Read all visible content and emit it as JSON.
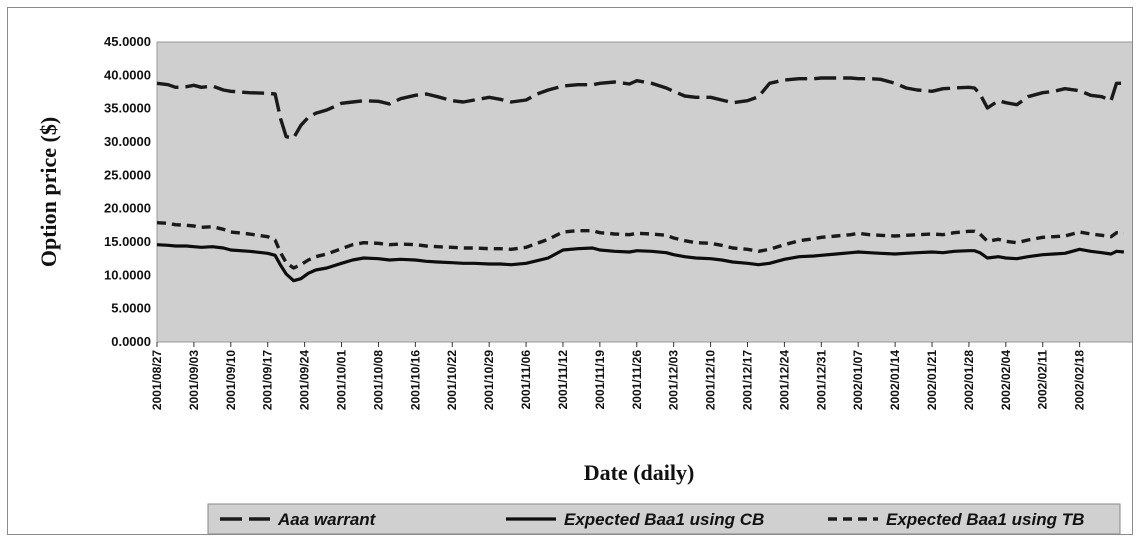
{
  "chart_data": {
    "type": "line",
    "title": "",
    "xlabel": "Date (daily)",
    "ylabel": "Option price ($)",
    "ylim": [
      0,
      45
    ],
    "y_ticks": [
      "45.0000",
      "40.0000",
      "35.0000",
      "30.0000",
      "25.0000",
      "20.0000",
      "15.0000",
      "10.0000",
      "5.0000",
      "0.0000"
    ],
    "x_ticks": [
      "2001/08/27",
      "2001/09/03",
      "2001/09/10",
      "2001/09/17",
      "2001/09/24",
      "2001/10/01",
      "2001/10/08",
      "2001/10/16",
      "2001/10/22",
      "2001/10/29",
      "2001/11/06",
      "2001/11/12",
      "2001/11/19",
      "2001/11/26",
      "2001/12/03",
      "2001/12/10",
      "2001/12/17",
      "2001/12/24",
      "2001/12/31",
      "2002/01/07",
      "2002/01/14",
      "2002/01/21",
      "2002/01/28",
      "2002/02/04",
      "2002/02/11",
      "2002/02/18"
    ],
    "x_range": [
      0,
      26.5
    ],
    "grid": false,
    "legend_position": "bottom",
    "series": [
      {
        "name": "Aaa warrant",
        "style": "long-dash",
        "color": "#1a1a1a",
        "x": [
          0,
          0.3,
          0.5,
          0.8,
          1,
          1.2,
          1.5,
          1.8,
          2,
          2.5,
          3,
          3.2,
          3.35,
          3.5,
          3.7,
          3.9,
          4.1,
          4.3,
          4.6,
          5,
          5.3,
          5.6,
          6,
          6.3,
          6.6,
          7,
          7.3,
          7.6,
          8,
          8.3,
          8.6,
          9,
          9.3,
          9.6,
          10,
          10.3,
          10.6,
          11,
          11.4,
          11.8,
          12,
          12.4,
          12.8,
          13,
          13.4,
          13.8,
          14,
          14.3,
          14.6,
          15,
          15.3,
          15.6,
          16,
          16.3,
          16.6,
          17,
          17.4,
          17.8,
          18,
          18.4,
          18.8,
          19,
          19.3,
          19.6,
          20,
          20.3,
          20.6,
          21,
          21.3,
          21.6,
          22,
          22.15,
          22.3,
          22.5,
          22.8,
          23,
          23.3,
          23.6,
          24,
          24.3,
          24.6,
          25,
          25.3,
          25.6,
          25.85,
          26,
          26.2
        ],
        "values": [
          38.8,
          38.6,
          38.2,
          38.3,
          38.5,
          38.2,
          38.4,
          37.8,
          37.6,
          37.4,
          37.3,
          37.2,
          33.5,
          30.8,
          30.6,
          32.5,
          33.7,
          34.3,
          34.8,
          35.8,
          36,
          36.2,
          36.1,
          35.7,
          36.5,
          37,
          37.2,
          36.8,
          36.2,
          36,
          36.3,
          36.7,
          36.4,
          36,
          36.3,
          37.2,
          37.8,
          38.4,
          38.6,
          38.6,
          38.8,
          39,
          38.7,
          39.2,
          38.8,
          38.1,
          37.6,
          36.9,
          36.7,
          36.7,
          36.3,
          35.9,
          36.2,
          36.8,
          38.8,
          39.3,
          39.5,
          39.5,
          39.6,
          39.6,
          39.6,
          39.5,
          39.5,
          39.4,
          38.8,
          38.1,
          37.8,
          37.6,
          38,
          38.1,
          38.2,
          38.1,
          37.2,
          35.1,
          36.2,
          35.9,
          35.6,
          36.8,
          37.4,
          37.6,
          38,
          37.7,
          37,
          36.8,
          36.2,
          38.8,
          38.8
        ]
      },
      {
        "name": "Expected Baa1 using CB",
        "style": "solid",
        "color": "#0d0d0d",
        "x": [
          0,
          0.3,
          0.5,
          0.8,
          1,
          1.2,
          1.5,
          1.8,
          2,
          2.5,
          3,
          3.2,
          3.35,
          3.5,
          3.7,
          3.9,
          4.1,
          4.3,
          4.6,
          5,
          5.3,
          5.6,
          6,
          6.3,
          6.6,
          7,
          7.3,
          7.6,
          8,
          8.3,
          8.6,
          9,
          9.3,
          9.6,
          10,
          10.3,
          10.6,
          11,
          11.4,
          11.8,
          12,
          12.4,
          12.8,
          13,
          13.4,
          13.8,
          14,
          14.3,
          14.6,
          15,
          15.3,
          15.6,
          16,
          16.3,
          16.6,
          17,
          17.4,
          17.8,
          18,
          18.4,
          18.8,
          19,
          19.3,
          19.6,
          20,
          20.3,
          20.6,
          21,
          21.3,
          21.6,
          22,
          22.15,
          22.3,
          22.5,
          22.8,
          23,
          23.3,
          23.6,
          24,
          24.3,
          24.6,
          25,
          25.3,
          25.6,
          25.85,
          26,
          26.2
        ],
        "values": [
          14.6,
          14.5,
          14.4,
          14.4,
          14.3,
          14.2,
          14.3,
          14.1,
          13.8,
          13.6,
          13.3,
          13,
          11.5,
          10.2,
          9.2,
          9.5,
          10.3,
          10.8,
          11.1,
          11.8,
          12.3,
          12.6,
          12.5,
          12.3,
          12.4,
          12.3,
          12.1,
          12,
          11.9,
          11.8,
          11.8,
          11.7,
          11.7,
          11.6,
          11.8,
          12.2,
          12.6,
          13.8,
          14,
          14.1,
          13.8,
          13.6,
          13.5,
          13.7,
          13.6,
          13.4,
          13.1,
          12.8,
          12.6,
          12.5,
          12.3,
          12,
          11.8,
          11.6,
          11.8,
          12.4,
          12.8,
          12.9,
          13,
          13.2,
          13.4,
          13.5,
          13.4,
          13.3,
          13.2,
          13.3,
          13.4,
          13.5,
          13.4,
          13.6,
          13.7,
          13.7,
          13.4,
          12.6,
          12.8,
          12.6,
          12.5,
          12.8,
          13.1,
          13.2,
          13.3,
          13.9,
          13.6,
          13.4,
          13.2,
          13.6,
          13.5
        ]
      },
      {
        "name": "Expected Baa1 using TB",
        "style": "short-dash",
        "color": "#1a1a1a",
        "x": [
          0,
          0.3,
          0.5,
          0.8,
          1,
          1.2,
          1.5,
          1.8,
          2,
          2.5,
          3,
          3.2,
          3.35,
          3.5,
          3.7,
          3.9,
          4.1,
          4.3,
          4.6,
          5,
          5.3,
          5.6,
          6,
          6.3,
          6.6,
          7,
          7.3,
          7.6,
          8,
          8.3,
          8.6,
          9,
          9.3,
          9.6,
          10,
          10.3,
          10.6,
          11,
          11.4,
          11.8,
          12,
          12.4,
          12.8,
          13,
          13.4,
          13.8,
          14,
          14.3,
          14.6,
          15,
          15.3,
          15.6,
          16,
          16.3,
          16.6,
          17,
          17.4,
          17.8,
          18,
          18.4,
          18.8,
          19,
          19.3,
          19.6,
          20,
          20.3,
          20.6,
          21,
          21.3,
          21.6,
          22,
          22.15,
          22.3,
          22.5,
          22.8,
          23,
          23.3,
          23.6,
          24,
          24.3,
          24.6,
          25,
          25.3,
          25.6,
          25.85,
          26,
          26.2
        ],
        "values": [
          17.9,
          17.8,
          17.6,
          17.5,
          17.4,
          17.2,
          17.3,
          16.9,
          16.5,
          16.2,
          15.8,
          15.3,
          13.4,
          11.9,
          11.1,
          11.6,
          12.3,
          12.8,
          13.2,
          14,
          14.6,
          14.9,
          14.8,
          14.6,
          14.7,
          14.6,
          14.4,
          14.3,
          14.2,
          14.1,
          14.1,
          14,
          14,
          13.9,
          14.2,
          14.8,
          15.4,
          16.5,
          16.7,
          16.7,
          16.4,
          16.2,
          16.1,
          16.3,
          16.2,
          16,
          15.6,
          15.2,
          14.9,
          14.8,
          14.5,
          14.1,
          13.9,
          13.6,
          13.9,
          14.6,
          15.2,
          15.5,
          15.7,
          15.9,
          16.1,
          16.3,
          16.1,
          16,
          15.9,
          16,
          16.1,
          16.2,
          16.1,
          16.4,
          16.6,
          16.6,
          16.2,
          15.1,
          15.4,
          15.1,
          14.9,
          15.3,
          15.7,
          15.8,
          15.9,
          16.5,
          16.2,
          16,
          15.8,
          16.4,
          16.3
        ]
      }
    ]
  }
}
